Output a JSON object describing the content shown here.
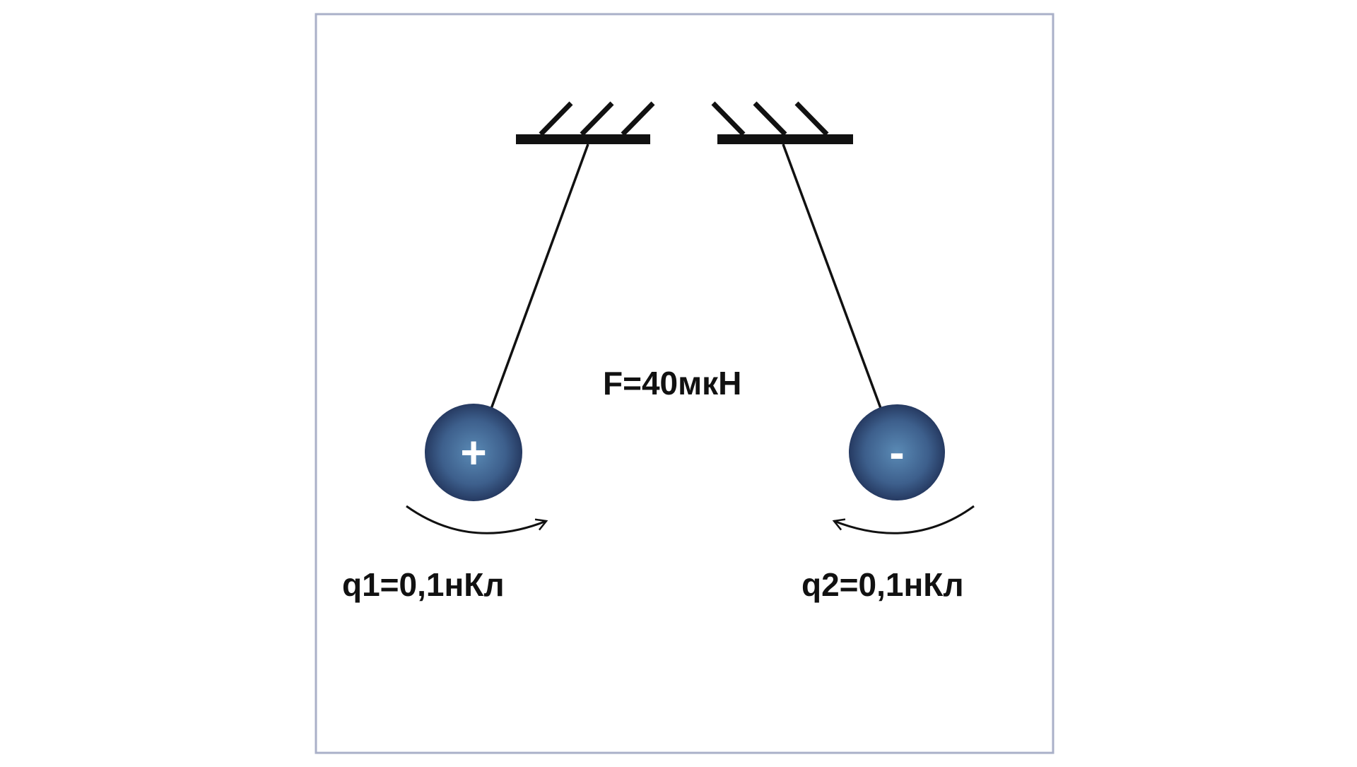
{
  "diagram": {
    "force_label": "F=40мкН",
    "left_ball": {
      "sign": "+",
      "charge_label": "q1=0,1нКл"
    },
    "right_ball": {
      "sign": "-",
      "charge_label": "q2=0,1нКл"
    },
    "colors": {
      "frame": "#aab0c8",
      "line": "#111111",
      "ball_light": "#5a8ab5",
      "ball_dark": "#1f2f55",
      "sign": "#ffffff",
      "text": "#111111"
    }
  }
}
